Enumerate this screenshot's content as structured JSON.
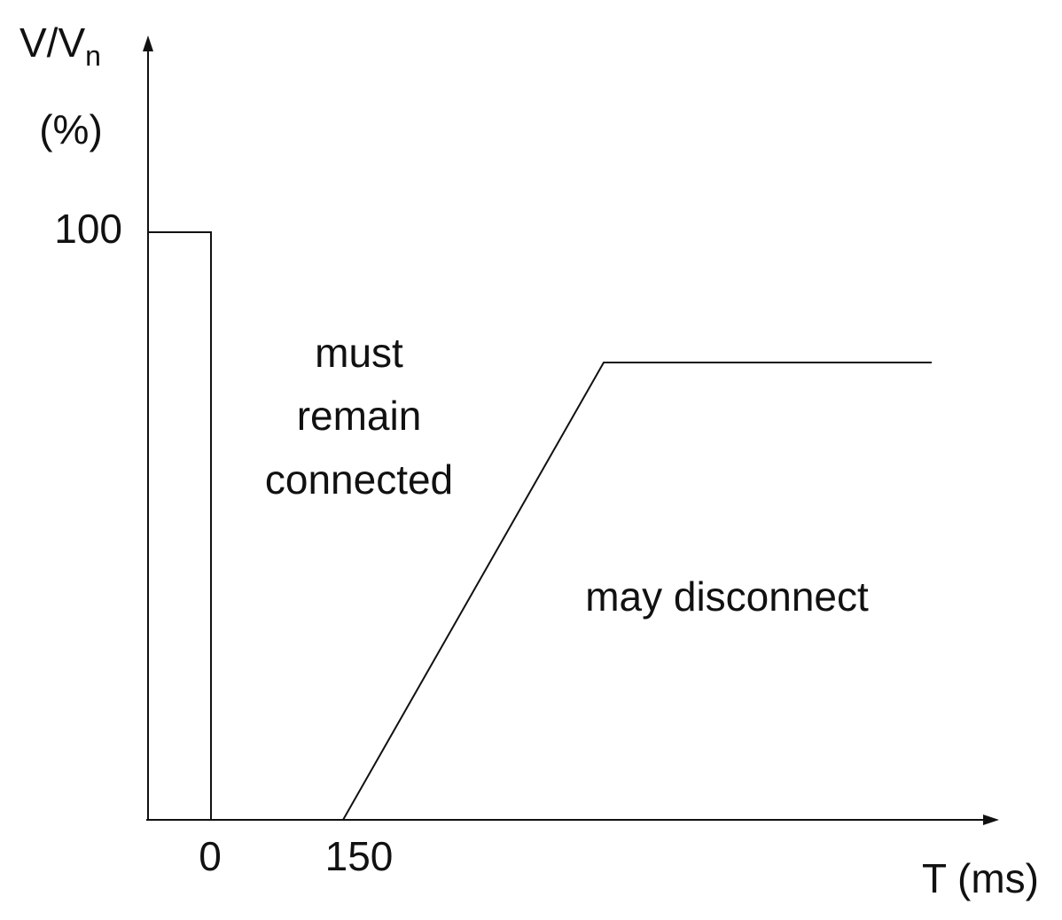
{
  "y_axis": {
    "label": "V/V",
    "label_subscript": "n",
    "unit": "(%)",
    "tick": "100"
  },
  "x_axis": {
    "label": "T (ms)",
    "ticks": [
      "0",
      "150"
    ]
  },
  "regions": {
    "upper": [
      "must",
      "remain",
      "connected"
    ],
    "lower": "may disconnect"
  }
}
